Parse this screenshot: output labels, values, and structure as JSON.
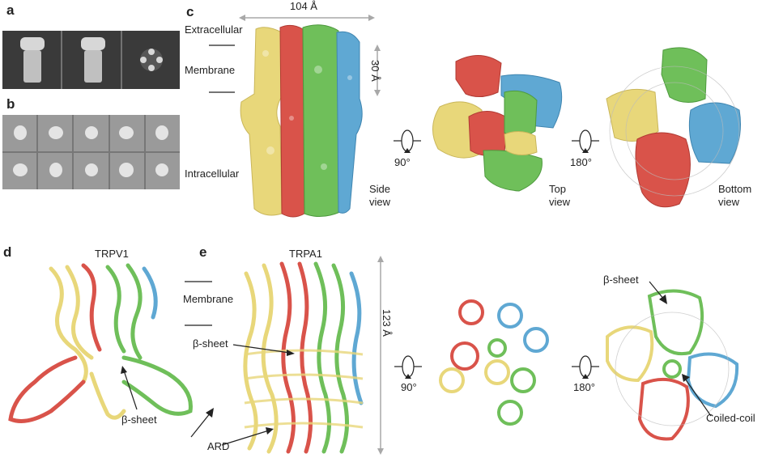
{
  "panels": {
    "a": "a",
    "b": "b",
    "c": "c",
    "d": "d",
    "e": "e"
  },
  "labels_c": {
    "extracellular": "Extracellular",
    "membrane": "Membrane",
    "intracellular": "Intracellular",
    "width": "104 Å",
    "thickness": "30 Å",
    "side_view": "Side\nview",
    "top_view": "Top\nview",
    "bottom_view": "Bottom\nview",
    "rot90": "90°",
    "rot180": "180°"
  },
  "labels_d": {
    "title": "TRPV1",
    "beta_sheet": "β-sheet",
    "ard": "ARD"
  },
  "labels_e": {
    "title": "TRPA1",
    "membrane": "Membrane",
    "beta_sheet": "β-sheet",
    "height": "123 Å",
    "rot90": "90°",
    "rot180": "180°",
    "beta_sheet_bottom": "β-sheet",
    "coiled_coil": "Coiled-coil"
  },
  "colors": {
    "yellow": "#e8d77a",
    "red": "#d9534a",
    "green": "#6fbf5a",
    "blue": "#5fa8d3",
    "arrow_gray": "#a8a8a8"
  }
}
